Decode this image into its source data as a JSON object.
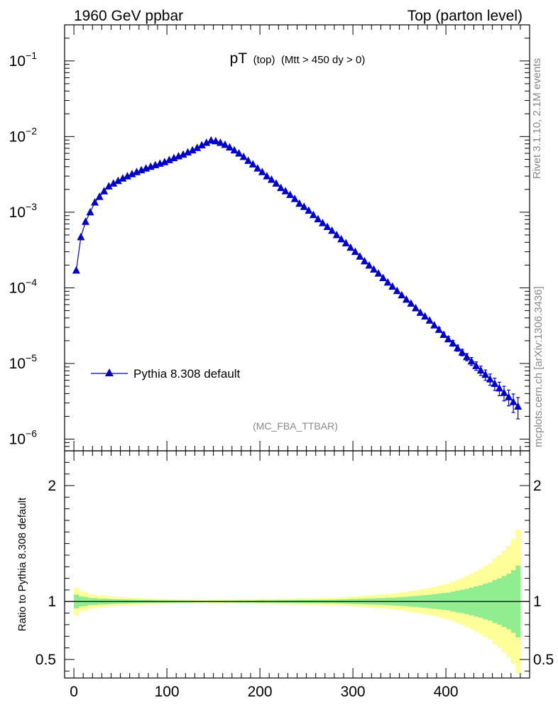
{
  "header": {
    "left": "1960 GeV ppbar",
    "right": "Top (parton level)"
  },
  "plot_title": {
    "main": "pT",
    "sub1": "(top)",
    "sub2": "(Mtt > 450 dy > 0)"
  },
  "side_text": {
    "rivet": "Rivet 3.1.10,  2.1M events",
    "mcplots": "mcplots.cern.ch [arXiv:1306.3436]"
  },
  "analysis_label": "(MC_FBA_TTBAR)",
  "legend": {
    "label": "Pythia 8.308 default"
  },
  "ratio_ylabel": "Ratio to Pythia 8.308 default",
  "colors": {
    "series": "#0000cc",
    "band_inner": "#90ee90",
    "band_outer": "#ffff99",
    "axis": "#000000",
    "grey_text": "#888888"
  },
  "chart_data": [
    {
      "type": "line",
      "panel": "main",
      "yscale": "log",
      "xlim": [
        -10,
        490
      ],
      "ylim": [
        7e-07,
        0.3
      ],
      "y_tick_labels": [
        "10^-6",
        "10^-5",
        "10^-4",
        "10^-3",
        "10^-2",
        "10^-1"
      ],
      "series": [
        {
          "name": "Pythia 8.308 default",
          "marker": "triangle",
          "x": [
            2.5,
            7.5,
            12.5,
            17.5,
            22.5,
            27.5,
            32.5,
            37.5,
            42.5,
            47.5,
            52.5,
            57.5,
            62.5,
            67.5,
            72.5,
            77.5,
            82.5,
            87.5,
            92.5,
            97.5,
            102.5,
            107.5,
            112.5,
            117.5,
            122.5,
            127.5,
            132.5,
            137.5,
            142.5,
            147.5,
            152.5,
            157.5,
            162.5,
            167.5,
            172.5,
            177.5,
            182.5,
            187.5,
            192.5,
            197.5,
            202.5,
            207.5,
            212.5,
            217.5,
            222.5,
            227.5,
            232.5,
            237.5,
            242.5,
            247.5,
            252.5,
            257.5,
            262.5,
            267.5,
            272.5,
            277.5,
            282.5,
            287.5,
            292.5,
            297.5,
            302.5,
            307.5,
            312.5,
            317.5,
            322.5,
            327.5,
            332.5,
            337.5,
            342.5,
            347.5,
            352.5,
            357.5,
            362.5,
            367.5,
            372.5,
            377.5,
            382.5,
            387.5,
            392.5,
            397.5,
            402.5,
            407.5,
            412.5,
            417.5,
            422.5,
            427.5,
            432.5,
            437.5,
            442.5,
            447.5,
            452.5,
            457.5,
            462.5,
            467.5,
            472.5,
            477.5
          ],
          "y": [
            0.00017,
            0.00047,
            0.00075,
            0.001,
            0.00135,
            0.0016,
            0.0019,
            0.0022,
            0.0024,
            0.0026,
            0.0028,
            0.003,
            0.0032,
            0.0034,
            0.0036,
            0.0038,
            0.004,
            0.0042,
            0.0044,
            0.0046,
            0.0049,
            0.0052,
            0.0055,
            0.0058,
            0.0062,
            0.0066,
            0.0071,
            0.0077,
            0.0083,
            0.0089,
            0.0087,
            0.0083,
            0.0078,
            0.0072,
            0.0066,
            0.006,
            0.0054,
            0.0048,
            0.0043,
            0.0038,
            0.0034,
            0.003,
            0.0027,
            0.0024,
            0.0021,
            0.0019,
            0.0017,
            0.0015,
            0.0013,
            0.00118,
            0.00105,
            0.00092,
            0.00081,
            0.00072,
            0.00064,
            0.00057,
            0.0005,
            0.00044,
            0.00039,
            0.00034,
            0.0003,
            0.00026,
            0.000225,
            0.000198,
            0.000175,
            0.000155,
            0.000135,
            0.000118,
            0.000104,
            9.1e-05,
            8e-05,
            7e-05,
            6.2e-05,
            5.4e-05,
            4.7e-05,
            4.2e-05,
            3.7e-05,
            3.2e-05,
            2.8e-05,
            2.4e-05,
            2.1e-05,
            1.85e-05,
            1.6e-05,
            1.4e-05,
            1.22e-05,
            1.07e-05,
            9.3e-06,
            8.1e-06,
            7.1e-06,
            6.2e-06,
            5.4e-06,
            4.7e-06,
            4.1e-06,
            3.6e-06,
            3.1e-06,
            2.7e-06
          ],
          "yerr": [
            1e-05,
            2e-05,
            3e-05,
            3e-05,
            4e-05,
            4e-05,
            5e-05,
            5e-05,
            5e-05,
            5e-05,
            5e-05,
            5e-05,
            5e-05,
            5e-05,
            5e-05,
            5e-05,
            5e-05,
            5e-05,
            5e-05,
            5e-05,
            5e-05,
            5e-05,
            5e-05,
            5e-05,
            5e-05,
            6e-05,
            6e-05,
            6e-05,
            6e-05,
            7e-05,
            7e-05,
            7e-05,
            7e-05,
            6e-05,
            6e-05,
            6e-05,
            5e-05,
            5e-05,
            4e-05,
            4e-05,
            4e-05,
            3e-05,
            3e-05,
            3e-05,
            2.5e-05,
            2.5e-05,
            2e-05,
            2e-05,
            1.8e-05,
            1.6e-05,
            1.5e-05,
            1.3e-05,
            1.2e-05,
            1.1e-05,
            1e-05,
            9e-06,
            8.5e-06,
            8e-06,
            7.5e-06,
            7e-06,
            6.5e-06,
            6e-06,
            5.6e-06,
            5.2e-06,
            4.8e-06,
            4.5e-06,
            4.1e-06,
            3.8e-06,
            3.5e-06,
            3.3e-06,
            3.1e-06,
            2.9e-06,
            2.8e-06,
            2.6e-06,
            2.4e-06,
            2.3e-06,
            2.2e-06,
            2e-06,
            1.9e-06,
            1.8e-06,
            1.7e-06,
            1.6e-06,
            1.5e-06,
            1.4e-06,
            1.35e-06,
            1.3e-06,
            1.2e-06,
            1.15e-06,
            1.1e-06,
            1.05e-06,
            1e-06,
            9.5e-07,
            9e-07,
            8.5e-07,
            8.5e-07,
            8.5e-07
          ]
        }
      ]
    },
    {
      "type": "area",
      "panel": "ratio",
      "xlim": [
        -10,
        490
      ],
      "ylim": [
        0.34,
        2.3
      ],
      "x_tick_labels": [
        "0",
        "100",
        "200",
        "300",
        "400"
      ],
      "y_tick_labels": [
        "0.5",
        "1",
        "2"
      ],
      "ylabel": "Ratio to Pythia 8.308 default",
      "reference_line": 1,
      "bin_edges": [
        0,
        5,
        10,
        15,
        20,
        25,
        30,
        35,
        40,
        45,
        50,
        55,
        60,
        65,
        70,
        75,
        80,
        85,
        90,
        95,
        100,
        105,
        110,
        115,
        120,
        125,
        130,
        135,
        140,
        145,
        150,
        155,
        160,
        165,
        170,
        175,
        180,
        185,
        190,
        195,
        200,
        205,
        210,
        215,
        220,
        225,
        230,
        235,
        240,
        245,
        250,
        255,
        260,
        265,
        270,
        275,
        280,
        285,
        290,
        295,
        300,
        305,
        310,
        315,
        320,
        325,
        330,
        335,
        340,
        345,
        350,
        355,
        360,
        365,
        370,
        375,
        380,
        385,
        390,
        395,
        400,
        405,
        410,
        415,
        420,
        425,
        430,
        435,
        440,
        445,
        450,
        455,
        460,
        465,
        470,
        475,
        480
      ],
      "band_inner_rel": [
        0.06,
        0.043,
        0.04,
        0.03,
        0.03,
        0.025,
        0.026,
        0.023,
        0.021,
        0.019,
        0.018,
        0.017,
        0.016,
        0.015,
        0.014,
        0.013,
        0.013,
        0.012,
        0.011,
        0.011,
        0.01,
        0.01,
        0.009,
        0.009,
        0.008,
        0.009,
        0.008,
        0.008,
        0.007,
        0.008,
        0.008,
        0.008,
        0.009,
        0.008,
        0.009,
        0.01,
        0.009,
        0.01,
        0.009,
        0.011,
        0.012,
        0.01,
        0.011,
        0.012,
        0.012,
        0.013,
        0.012,
        0.013,
        0.014,
        0.014,
        0.014,
        0.014,
        0.015,
        0.015,
        0.016,
        0.016,
        0.017,
        0.018,
        0.019,
        0.021,
        0.022,
        0.023,
        0.025,
        0.026,
        0.027,
        0.029,
        0.03,
        0.032,
        0.034,
        0.036,
        0.039,
        0.041,
        0.045,
        0.048,
        0.051,
        0.055,
        0.059,
        0.063,
        0.068,
        0.073,
        0.077,
        0.086,
        0.094,
        0.1,
        0.11,
        0.12,
        0.13,
        0.14,
        0.155,
        0.165,
        0.185,
        0.2,
        0.22,
        0.24,
        0.27,
        0.31
      ],
      "band_outer_rel": [
        0.12,
        0.086,
        0.08,
        0.06,
        0.06,
        0.05,
        0.052,
        0.046,
        0.042,
        0.038,
        0.036,
        0.034,
        0.032,
        0.03,
        0.028,
        0.026,
        0.026,
        0.024,
        0.022,
        0.022,
        0.02,
        0.02,
        0.018,
        0.018,
        0.016,
        0.018,
        0.016,
        0.016,
        0.014,
        0.016,
        0.016,
        0.016,
        0.018,
        0.016,
        0.018,
        0.02,
        0.018,
        0.02,
        0.018,
        0.022,
        0.024,
        0.02,
        0.022,
        0.024,
        0.024,
        0.026,
        0.024,
        0.026,
        0.028,
        0.028,
        0.028,
        0.028,
        0.03,
        0.03,
        0.032,
        0.032,
        0.034,
        0.036,
        0.038,
        0.042,
        0.044,
        0.046,
        0.05,
        0.052,
        0.054,
        0.058,
        0.06,
        0.064,
        0.068,
        0.072,
        0.078,
        0.082,
        0.09,
        0.096,
        0.102,
        0.11,
        0.118,
        0.126,
        0.136,
        0.146,
        0.154,
        0.172,
        0.188,
        0.2,
        0.22,
        0.24,
        0.26,
        0.28,
        0.31,
        0.33,
        0.37,
        0.4,
        0.44,
        0.48,
        0.54,
        0.62
      ]
    }
  ]
}
